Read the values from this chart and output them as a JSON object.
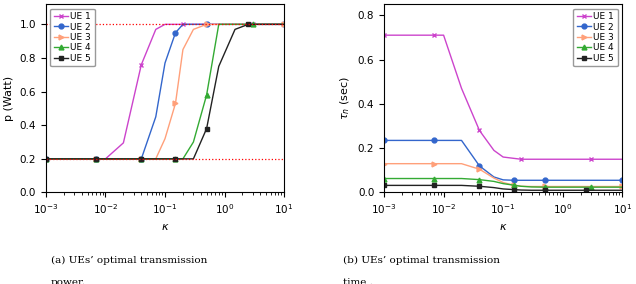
{
  "left_plot": {
    "xlabel": "\\kappa",
    "ylabel": "p (Watt)",
    "ylim": [
      0.0,
      1.12
    ],
    "yticks": [
      0.0,
      0.2,
      0.4,
      0.6,
      0.8,
      1.0
    ],
    "hlines": [
      1.0,
      0.2
    ],
    "hline_color": "#FF0000",
    "hline_style": "dotted",
    "series": [
      {
        "label": "UE 1",
        "color": "#CC44CC",
        "marker": "x",
        "kappa": [
          0.001,
          0.003,
          0.005,
          0.007,
          0.01,
          0.02,
          0.04,
          0.07,
          0.1,
          0.2,
          0.4,
          1.0,
          3.0,
          10.0
        ],
        "values": [
          0.2,
          0.2,
          0.2,
          0.2,
          0.2,
          0.295,
          0.76,
          0.97,
          1.0,
          1.0,
          1.0,
          1.0,
          1.0,
          1.0
        ]
      },
      {
        "label": "UE 2",
        "color": "#3366CC",
        "marker": "o",
        "kappa": [
          0.001,
          0.003,
          0.005,
          0.007,
          0.01,
          0.02,
          0.04,
          0.07,
          0.1,
          0.15,
          0.2,
          0.3,
          0.5,
          1.0,
          3.0,
          10.0
        ],
        "values": [
          0.2,
          0.2,
          0.2,
          0.2,
          0.2,
          0.2,
          0.2,
          0.45,
          0.77,
          0.95,
          1.0,
          1.0,
          1.0,
          1.0,
          1.0,
          1.0
        ]
      },
      {
        "label": "UE 3",
        "color": "#FFA07A",
        "marker": ">",
        "kappa": [
          0.001,
          0.003,
          0.005,
          0.007,
          0.01,
          0.02,
          0.04,
          0.07,
          0.1,
          0.15,
          0.2,
          0.3,
          0.5,
          1.0,
          3.0,
          10.0
        ],
        "values": [
          0.2,
          0.2,
          0.2,
          0.2,
          0.2,
          0.2,
          0.2,
          0.2,
          0.32,
          0.53,
          0.85,
          0.97,
          1.0,
          1.0,
          1.0,
          1.0
        ]
      },
      {
        "label": "UE 4",
        "color": "#33AA33",
        "marker": "^",
        "kappa": [
          0.001,
          0.003,
          0.005,
          0.007,
          0.01,
          0.02,
          0.04,
          0.07,
          0.1,
          0.15,
          0.2,
          0.3,
          0.5,
          0.8,
          1.0,
          3.0,
          10.0
        ],
        "values": [
          0.2,
          0.2,
          0.2,
          0.2,
          0.2,
          0.2,
          0.2,
          0.2,
          0.2,
          0.2,
          0.2,
          0.3,
          0.58,
          1.0,
          1.0,
          1.0,
          1.0
        ]
      },
      {
        "label": "UE 5",
        "color": "#222222",
        "marker": "s",
        "kappa": [
          0.001,
          0.003,
          0.005,
          0.007,
          0.01,
          0.02,
          0.04,
          0.07,
          0.1,
          0.15,
          0.2,
          0.3,
          0.5,
          0.8,
          1.5,
          2.5,
          5.0,
          10.0
        ],
        "values": [
          0.2,
          0.2,
          0.2,
          0.2,
          0.2,
          0.2,
          0.2,
          0.2,
          0.2,
          0.2,
          0.2,
          0.2,
          0.38,
          0.75,
          0.97,
          1.0,
          1.0,
          1.0
        ]
      }
    ],
    "caption_a1": "(a) UEs’ optimal transmission",
    "caption_a2": "power."
  },
  "right_plot": {
    "xlabel": "\\kappa",
    "ylabel": "\\tau_n (sec)",
    "ylim": [
      0.0,
      0.85
    ],
    "yticks": [
      0.0,
      0.2,
      0.4,
      0.6,
      0.8
    ],
    "series": [
      {
        "label": "UE 1",
        "color": "#CC44CC",
        "marker": "x",
        "kappa": [
          0.001,
          0.003,
          0.005,
          0.007,
          0.01,
          0.02,
          0.04,
          0.07,
          0.1,
          0.2,
          0.4,
          1.0,
          3.0,
          10.0
        ],
        "values": [
          0.71,
          0.71,
          0.71,
          0.71,
          0.71,
          0.47,
          0.28,
          0.19,
          0.16,
          0.15,
          0.15,
          0.15,
          0.15,
          0.15
        ]
      },
      {
        "label": "UE 2",
        "color": "#3366CC",
        "marker": "o",
        "kappa": [
          0.001,
          0.003,
          0.005,
          0.007,
          0.01,
          0.02,
          0.04,
          0.07,
          0.1,
          0.15,
          0.2,
          0.3,
          0.5,
          1.0,
          3.0,
          10.0
        ],
        "values": [
          0.235,
          0.235,
          0.235,
          0.235,
          0.235,
          0.235,
          0.12,
          0.07,
          0.057,
          0.055,
          0.055,
          0.055,
          0.055,
          0.055,
          0.055,
          0.055
        ]
      },
      {
        "label": "UE 3",
        "color": "#FFA07A",
        "marker": ">",
        "kappa": [
          0.001,
          0.003,
          0.005,
          0.007,
          0.01,
          0.02,
          0.04,
          0.07,
          0.1,
          0.15,
          0.2,
          0.3,
          0.5,
          1.0,
          3.0,
          10.0
        ],
        "values": [
          0.13,
          0.13,
          0.13,
          0.13,
          0.13,
          0.13,
          0.105,
          0.065,
          0.045,
          0.033,
          0.028,
          0.027,
          0.027,
          0.027,
          0.027,
          0.027
        ]
      },
      {
        "label": "UE 4",
        "color": "#33AA33",
        "marker": "^",
        "kappa": [
          0.001,
          0.003,
          0.005,
          0.007,
          0.01,
          0.02,
          0.04,
          0.07,
          0.1,
          0.15,
          0.2,
          0.3,
          0.5,
          0.8,
          1.0,
          3.0,
          10.0
        ],
        "values": [
          0.063,
          0.063,
          0.063,
          0.063,
          0.063,
          0.063,
          0.058,
          0.05,
          0.04,
          0.033,
          0.028,
          0.025,
          0.024,
          0.024,
          0.024,
          0.024,
          0.024
        ]
      },
      {
        "label": "UE 5",
        "color": "#222222",
        "marker": "s",
        "kappa": [
          0.001,
          0.003,
          0.005,
          0.007,
          0.01,
          0.02,
          0.04,
          0.07,
          0.1,
          0.15,
          0.2,
          0.3,
          0.5,
          0.8,
          1.5,
          2.5,
          5.0,
          10.0
        ],
        "values": [
          0.032,
          0.032,
          0.032,
          0.032,
          0.032,
          0.032,
          0.028,
          0.022,
          0.016,
          0.013,
          0.011,
          0.01,
          0.01,
          0.01,
          0.01,
          0.01,
          0.01,
          0.01
        ]
      }
    ],
    "caption_b1": "(b) UEs’ optimal transmission",
    "caption_b2": "time ."
  },
  "figsize": [
    6.36,
    2.84
  ],
  "dpi": 100
}
